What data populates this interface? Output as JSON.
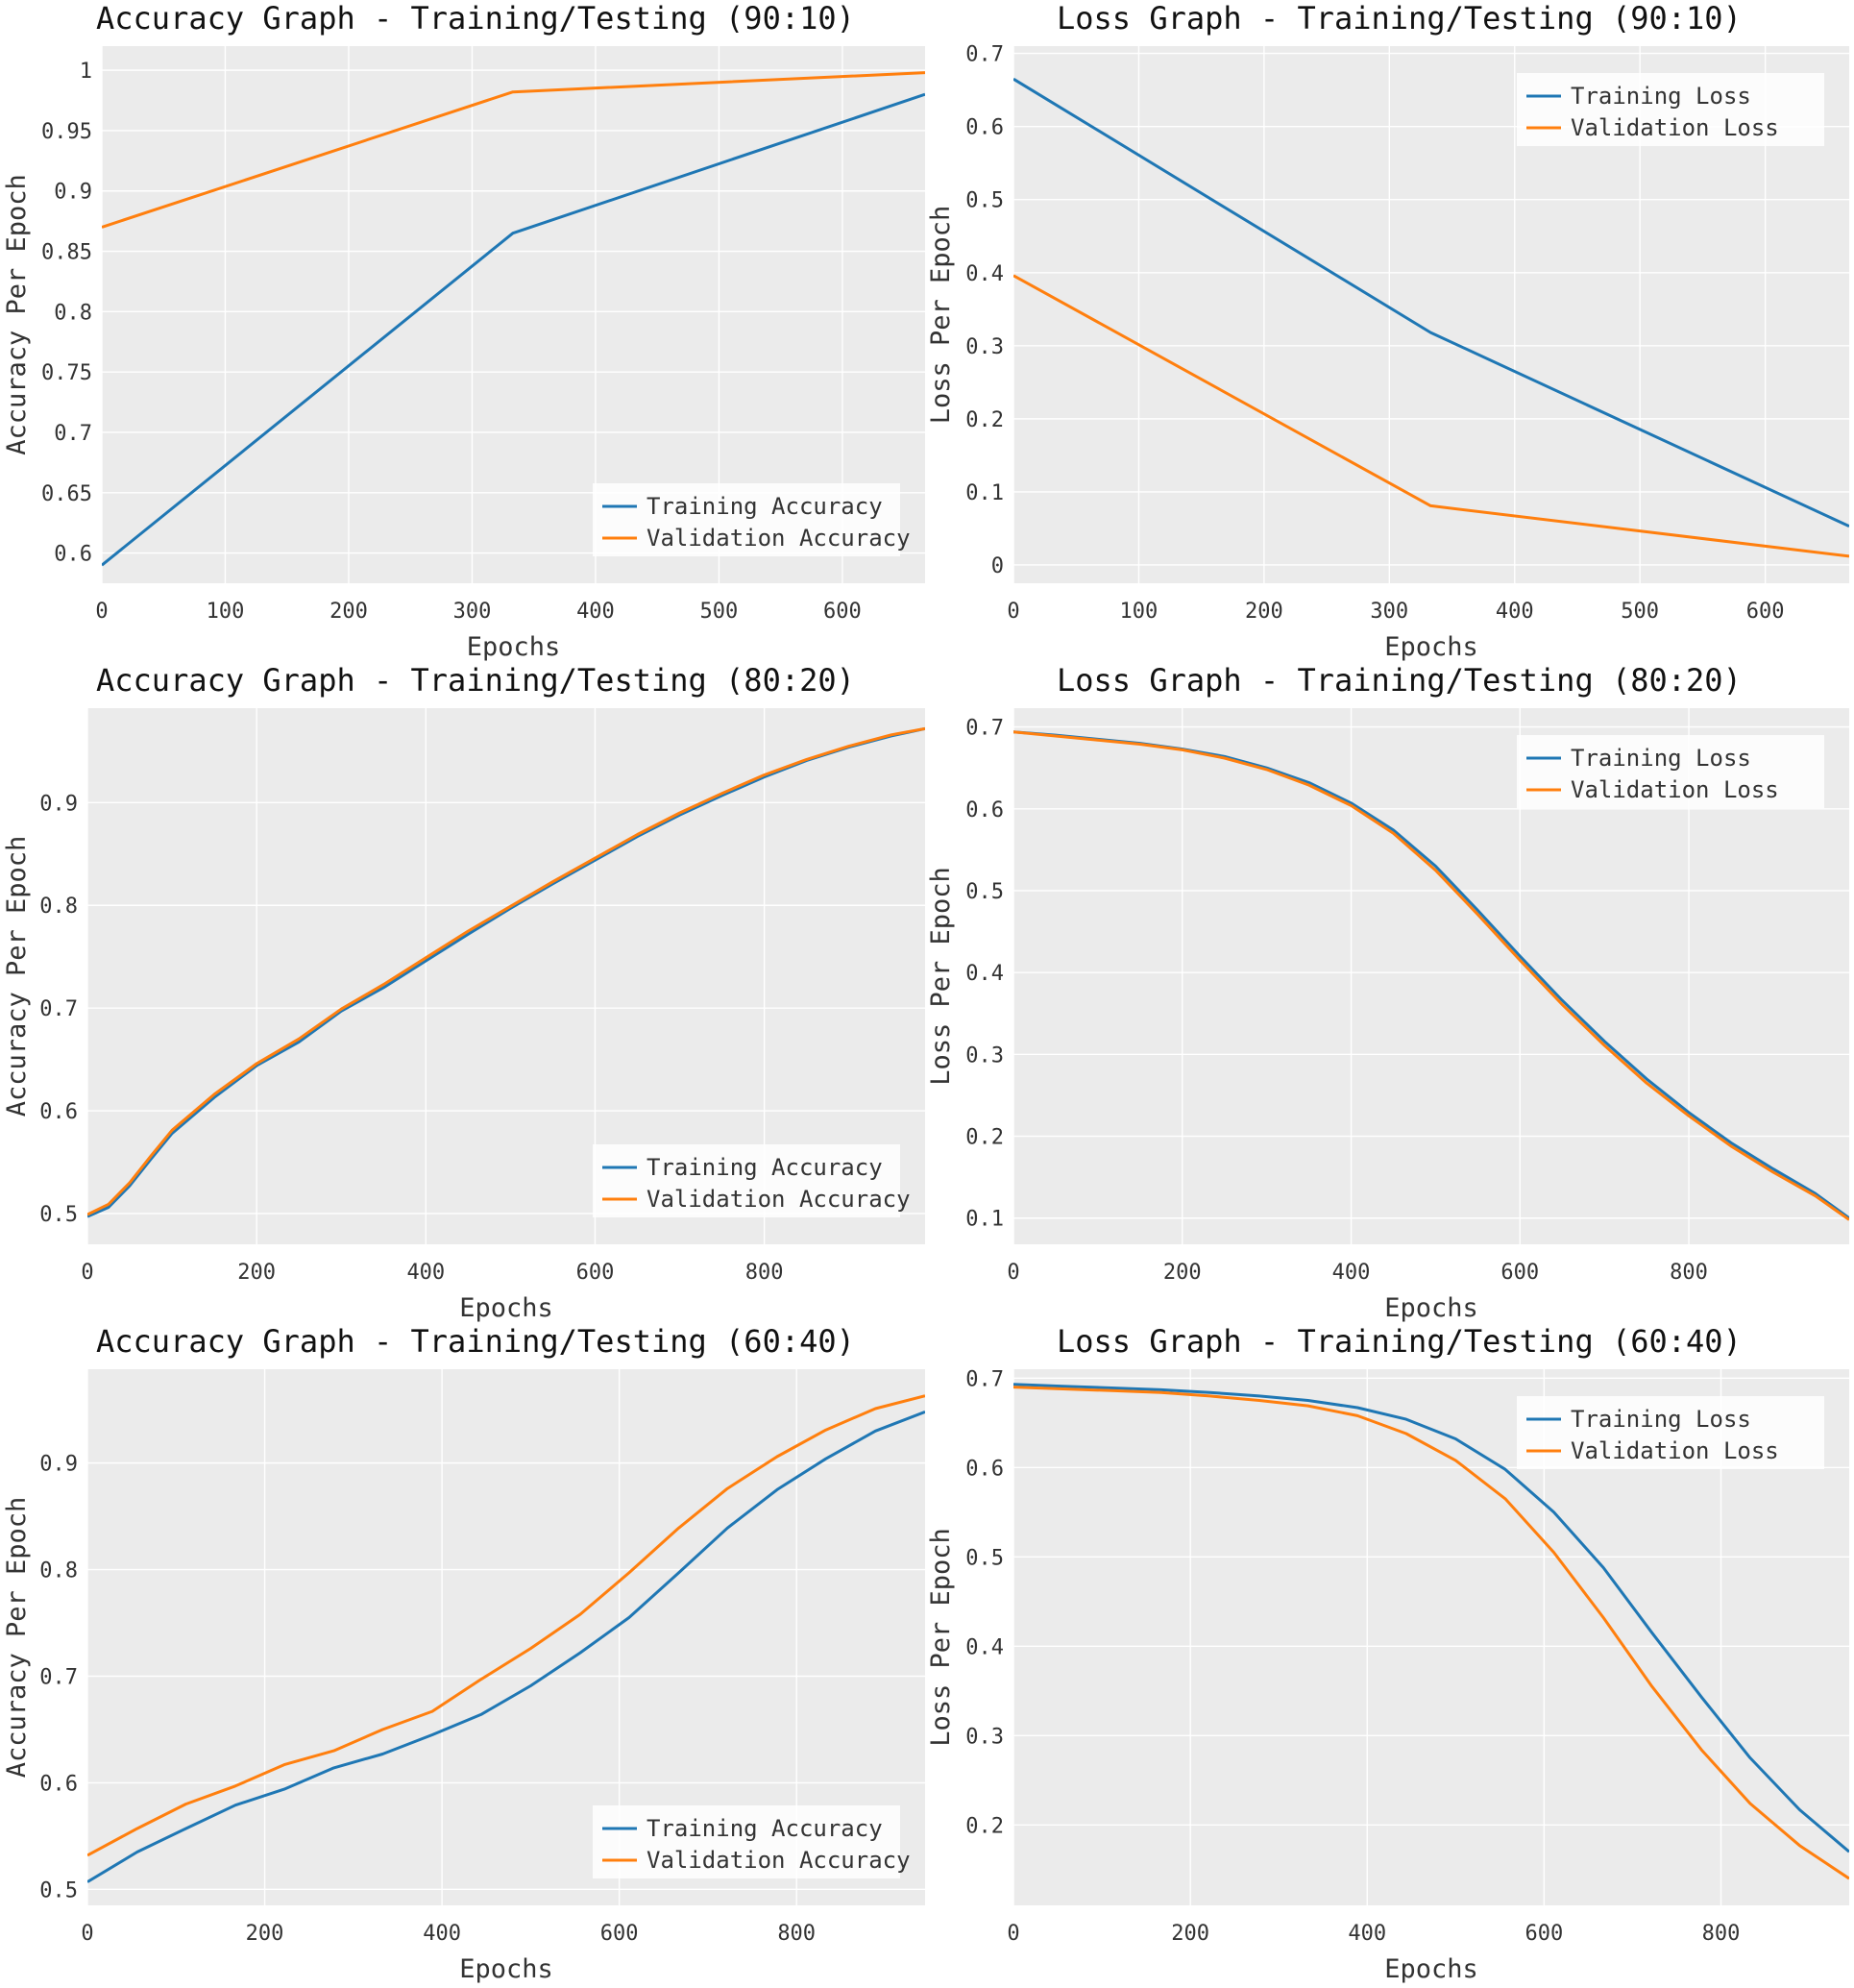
{
  "colors": {
    "training": "#1f77b4",
    "validation": "#ff7f0e",
    "panel_bg": "#ebebeb",
    "grid": "#ffffff"
  },
  "chart_data": [
    {
      "id": "acc-90-10",
      "type": "line",
      "title": "Accuracy Graph - Training/Testing (90:10)",
      "xlabel": "Epochs",
      "ylabel": "Accuracy Per Epoch",
      "xlim": [
        0,
        667
      ],
      "ylim": [
        0.575,
        1.02
      ],
      "xticks": [
        0,
        100,
        200,
        300,
        400,
        500,
        600
      ],
      "yticks": [
        0.6,
        0.65,
        0.7,
        0.75,
        0.8,
        0.85,
        0.9,
        0.95,
        1
      ],
      "ytick_labels": [
        "0.6",
        "0.65",
        "0.7",
        "0.75",
        "0.8",
        "0.85",
        "0.9",
        "0.95",
        "1"
      ],
      "legend_position": "bottom-right",
      "series": [
        {
          "name": "Training Accuracy",
          "color": "training",
          "x": [
            0,
            333,
            667
          ],
          "y": [
            0.59,
            0.865,
            0.98
          ]
        },
        {
          "name": "Validation Accuracy",
          "color": "validation",
          "x": [
            0,
            333,
            667
          ],
          "y": [
            0.87,
            0.982,
            0.998
          ]
        }
      ]
    },
    {
      "id": "loss-90-10",
      "type": "line",
      "title": "Loss Graph - Training/Testing (90:10)",
      "xlabel": "Epochs",
      "ylabel": "Loss Per Epoch",
      "xlim": [
        0,
        667
      ],
      "ylim": [
        -0.025,
        0.71
      ],
      "xticks": [
        0,
        100,
        200,
        300,
        400,
        500,
        600
      ],
      "yticks": [
        0,
        0.1,
        0.2,
        0.3,
        0.4,
        0.5,
        0.6,
        0.7
      ],
      "ytick_labels": [
        "0",
        "0.1",
        "0.2",
        "0.3",
        "0.4",
        "0.5",
        "0.6",
        "0.7"
      ],
      "legend_position": "top-right",
      "series": [
        {
          "name": "Training Loss",
          "color": "training",
          "x": [
            0,
            333,
            667
          ],
          "y": [
            0.665,
            0.318,
            0.053
          ]
        },
        {
          "name": "Validation Loss",
          "color": "validation",
          "x": [
            0,
            333,
            667
          ],
          "y": [
            0.396,
            0.081,
            0.012
          ]
        }
      ]
    },
    {
      "id": "acc-80-20",
      "type": "line",
      "title": "Accuracy Graph - Training/Testing (80:20)",
      "xlabel": "Epochs",
      "ylabel": "Accuracy Per Epoch",
      "xlim": [
        0,
        990
      ],
      "ylim": [
        0.47,
        0.992
      ],
      "xticks": [
        0,
        200,
        400,
        600,
        800
      ],
      "yticks": [
        0.5,
        0.6,
        0.7,
        0.8,
        0.9
      ],
      "ytick_labels": [
        "0.5",
        "0.6",
        "0.7",
        "0.8",
        "0.9"
      ],
      "legend_position": "bottom-right",
      "series": [
        {
          "name": "Training Accuracy",
          "color": "training",
          "x": [
            0,
            25,
            50,
            75,
            100,
            150,
            200,
            250,
            300,
            350,
            400,
            450,
            500,
            550,
            600,
            650,
            700,
            750,
            800,
            850,
            900,
            950,
            990
          ],
          "y": [
            0.497,
            0.506,
            0.527,
            0.553,
            0.578,
            0.613,
            0.644,
            0.667,
            0.697,
            0.72,
            0.746,
            0.772,
            0.797,
            0.821,
            0.844,
            0.867,
            0.888,
            0.907,
            0.925,
            0.941,
            0.954,
            0.965,
            0.972
          ]
        },
        {
          "name": "Validation Accuracy",
          "color": "validation",
          "x": [
            0,
            25,
            50,
            75,
            100,
            150,
            200,
            250,
            300,
            350,
            400,
            450,
            500,
            550,
            600,
            650,
            700,
            750,
            800,
            850,
            900,
            950,
            990
          ],
          "y": [
            0.499,
            0.509,
            0.53,
            0.556,
            0.581,
            0.616,
            0.646,
            0.67,
            0.699,
            0.723,
            0.749,
            0.775,
            0.799,
            0.823,
            0.846,
            0.869,
            0.89,
            0.909,
            0.927,
            0.942,
            0.955,
            0.966,
            0.972
          ]
        }
      ]
    },
    {
      "id": "loss-80-20",
      "type": "line",
      "title": "Loss Graph - Training/Testing (80:20)",
      "xlabel": "Epochs",
      "ylabel": "Loss Per Epoch",
      "xlim": [
        0,
        990
      ],
      "ylim": [
        0.068,
        0.723
      ],
      "xticks": [
        0,
        200,
        400,
        600,
        800
      ],
      "yticks": [
        0.1,
        0.2,
        0.3,
        0.4,
        0.5,
        0.6,
        0.7
      ],
      "ytick_labels": [
        "0.1",
        "0.2",
        "0.3",
        "0.4",
        "0.5",
        "0.6",
        "0.7"
      ],
      "legend_position": "top-right",
      "series": [
        {
          "name": "Training Loss",
          "color": "training",
          "x": [
            0,
            50,
            100,
            150,
            200,
            250,
            300,
            350,
            400,
            450,
            500,
            550,
            600,
            650,
            700,
            750,
            800,
            850,
            900,
            950,
            990
          ],
          "y": [
            0.694,
            0.69,
            0.685,
            0.68,
            0.673,
            0.664,
            0.65,
            0.632,
            0.607,
            0.574,
            0.53,
            0.476,
            0.42,
            0.366,
            0.316,
            0.27,
            0.229,
            0.192,
            0.16,
            0.13,
            0.1
          ]
        },
        {
          "name": "Validation Loss",
          "color": "validation",
          "x": [
            0,
            50,
            100,
            150,
            200,
            250,
            300,
            350,
            400,
            450,
            500,
            550,
            600,
            650,
            700,
            750,
            800,
            850,
            900,
            950,
            990
          ],
          "y": [
            0.694,
            0.689,
            0.684,
            0.679,
            0.672,
            0.662,
            0.648,
            0.629,
            0.604,
            0.57,
            0.525,
            0.471,
            0.415,
            0.361,
            0.311,
            0.265,
            0.225,
            0.188,
            0.156,
            0.127,
            0.098
          ]
        }
      ]
    },
    {
      "id": "acc-60-40",
      "type": "line",
      "title": "Accuracy Graph - Training/Testing (60:40)",
      "xlabel": "Epochs",
      "ylabel": "Accuracy Per Epoch",
      "xlim": [
        0,
        945
      ],
      "ylim": [
        0.485,
        0.988
      ],
      "xticks": [
        0,
        200,
        400,
        600,
        800
      ],
      "yticks": [
        0.5,
        0.6,
        0.7,
        0.8,
        0.9
      ],
      "ytick_labels": [
        "0.5",
        "0.6",
        "0.7",
        "0.8",
        "0.9"
      ],
      "legend_position": "bottom-right",
      "series": [
        {
          "name": "Training Accuracy",
          "color": "training",
          "x": [
            0,
            56,
            111,
            167,
            222,
            278,
            333,
            389,
            444,
            500,
            556,
            611,
            667,
            722,
            778,
            833,
            889,
            945
          ],
          "y": [
            0.507,
            0.535,
            0.557,
            0.579,
            0.594,
            0.614,
            0.627,
            0.645,
            0.664,
            0.691,
            0.722,
            0.755,
            0.797,
            0.839,
            0.875,
            0.904,
            0.93,
            0.948
          ]
        },
        {
          "name": "Validation Accuracy",
          "color": "validation",
          "x": [
            0,
            56,
            111,
            167,
            222,
            278,
            333,
            389,
            444,
            500,
            556,
            611,
            667,
            722,
            778,
            833,
            889,
            945
          ],
          "y": [
            0.532,
            0.557,
            0.58,
            0.597,
            0.617,
            0.63,
            0.65,
            0.667,
            0.697,
            0.726,
            0.758,
            0.797,
            0.839,
            0.876,
            0.906,
            0.931,
            0.951,
            0.963
          ]
        }
      ]
    },
    {
      "id": "loss-60-40",
      "type": "line",
      "title": "Loss Graph - Training/Testing (60:40)",
      "xlabel": "Epochs",
      "ylabel": "Loss Per Epoch",
      "xlim": [
        0,
        945
      ],
      "ylim": [
        0.11,
        0.71
      ],
      "xticks": [
        0,
        200,
        400,
        600,
        800
      ],
      "yticks": [
        0.2,
        0.3,
        0.4,
        0.5,
        0.6,
        0.7
      ],
      "ytick_labels": [
        "0.2",
        "0.3",
        "0.4",
        "0.5",
        "0.6",
        "0.7"
      ],
      "legend_position": "top-right",
      "series": [
        {
          "name": "Training Loss",
          "color": "training",
          "x": [
            0,
            56,
            111,
            167,
            222,
            278,
            333,
            389,
            444,
            500,
            556,
            611,
            667,
            722,
            778,
            833,
            889,
            945
          ],
          "y": [
            0.693,
            0.691,
            0.689,
            0.687,
            0.684,
            0.68,
            0.675,
            0.667,
            0.654,
            0.632,
            0.598,
            0.55,
            0.488,
            0.415,
            0.343,
            0.275,
            0.217,
            0.17
          ]
        },
        {
          "name": "Validation Loss",
          "color": "validation",
          "x": [
            0,
            56,
            111,
            167,
            222,
            278,
            333,
            389,
            444,
            500,
            556,
            611,
            667,
            722,
            778,
            833,
            889,
            945
          ],
          "y": [
            0.69,
            0.688,
            0.686,
            0.684,
            0.68,
            0.675,
            0.669,
            0.658,
            0.638,
            0.608,
            0.565,
            0.505,
            0.432,
            0.355,
            0.284,
            0.224,
            0.177,
            0.14
          ]
        }
      ]
    }
  ]
}
